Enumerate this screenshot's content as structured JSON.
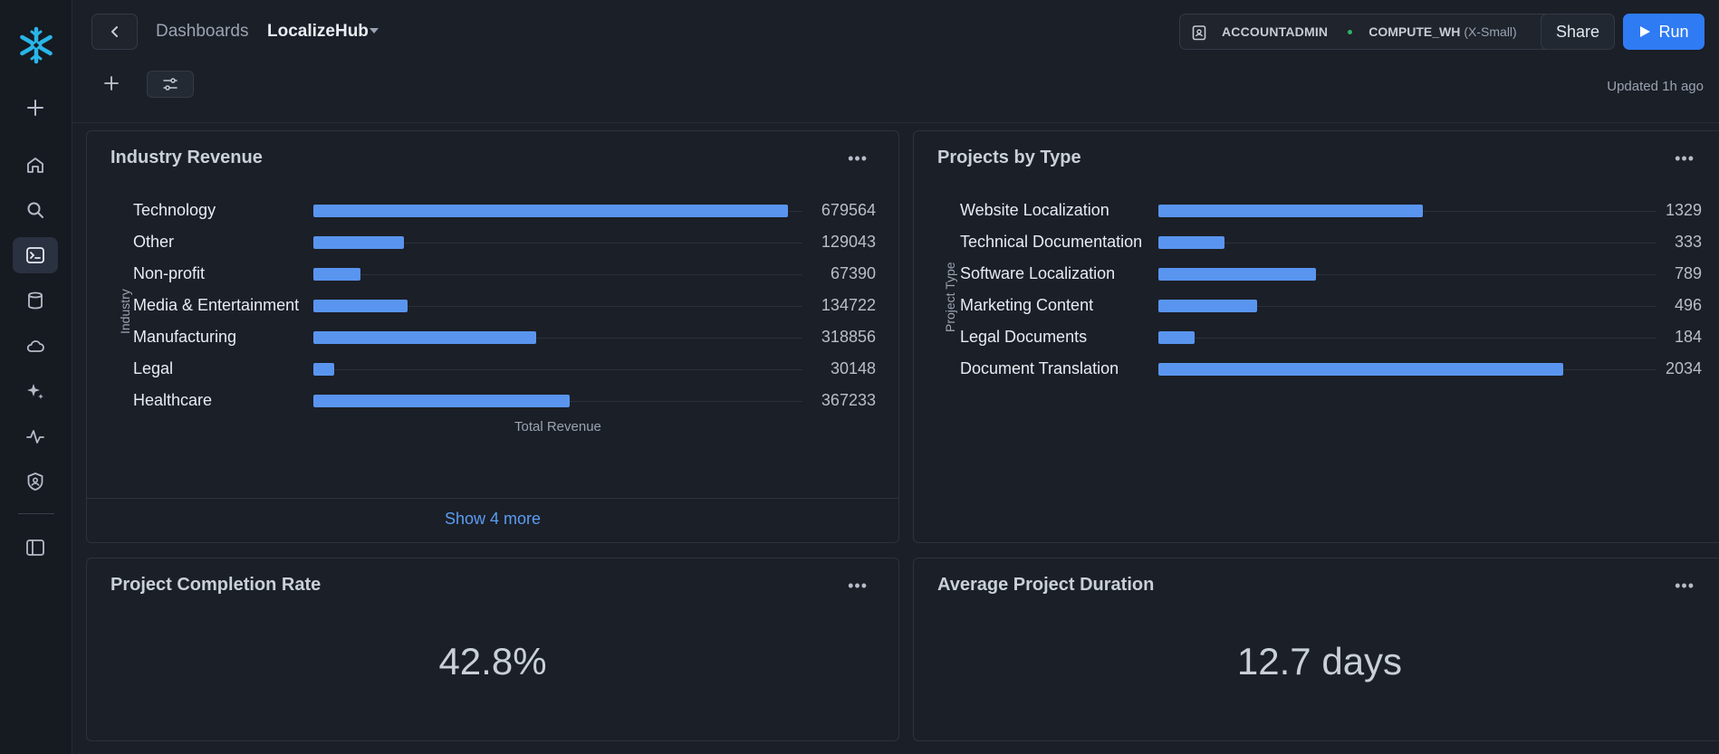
{
  "header": {
    "breadcrumb_parent": "Dashboards",
    "breadcrumb_current": "LocalizeHub",
    "role": "ACCOUNTADMIN",
    "warehouse": "COMPUTE_WH",
    "warehouse_size": "(X-Small)",
    "share_label": "Share",
    "run_label": "Run",
    "updated": "Updated 1h ago"
  },
  "sidebar": {
    "items": [
      {
        "name": "add-icon"
      },
      {
        "name": "home-icon"
      },
      {
        "name": "search-icon"
      },
      {
        "name": "terminal-icon"
      },
      {
        "name": "database-icon"
      },
      {
        "name": "cloud-icon"
      },
      {
        "name": "sparkle-icon"
      },
      {
        "name": "activity-icon"
      },
      {
        "name": "shield-user-icon"
      },
      {
        "name": "panel-toggle-icon"
      }
    ]
  },
  "cards": {
    "industry": {
      "title": "Industry Revenue",
      "show_more": "Show 4 more",
      "ylabel": "Industry",
      "xlabel": "Total Revenue"
    },
    "projects": {
      "title": "Projects by Type",
      "ylabel": "Project Type"
    },
    "completion": {
      "title": "Project Completion Rate",
      "value": "42.8%"
    },
    "duration": {
      "title": "Average Project Duration",
      "value": "12.7 days"
    }
  },
  "chart_data": [
    {
      "type": "bar",
      "orientation": "horizontal",
      "title": "Industry Revenue",
      "xlabel": "Total Revenue",
      "ylabel": "Industry",
      "categories": [
        "Technology",
        "Other",
        "Non-profit",
        "Media & Entertainment",
        "Manufacturing",
        "Legal",
        "Healthcare"
      ],
      "values": [
        679564,
        129043,
        67390,
        134722,
        318856,
        30148,
        367233
      ],
      "xlim": [
        0,
        700000
      ],
      "color": "#5995ef"
    },
    {
      "type": "bar",
      "orientation": "horizontal",
      "title": "Projects by Type",
      "xlabel": "",
      "ylabel": "Project Type",
      "categories": [
        "Website Localization",
        "Technical Documentation",
        "Software Localization",
        "Marketing Content",
        "Legal Documents",
        "Document Translation"
      ],
      "values": [
        1329,
        333,
        789,
        496,
        184,
        2034
      ],
      "xlim": [
        0,
        2500
      ],
      "color": "#5995ef"
    }
  ]
}
